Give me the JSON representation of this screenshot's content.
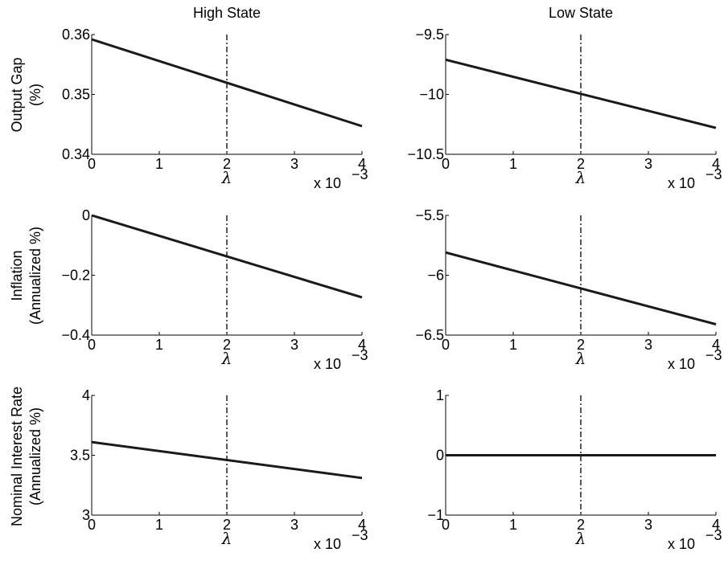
{
  "figure": {
    "column_titles": [
      "High State",
      "Low State"
    ],
    "row_ylabels": [
      [
        "Output Gap",
        "(%)"
      ],
      [
        "Inflation",
        "(Annualized %)"
      ],
      [
        "Nominal Interest Rate",
        "(Annualized %)"
      ]
    ]
  },
  "chart_data": [
    {
      "type": "line",
      "row": 0,
      "col": 0,
      "xlabel": "λ",
      "x_scale_label": "x 10",
      "x_scale_exp": "−3",
      "xlim": [
        0,
        4
      ],
      "xticks": [
        0,
        1,
        2,
        3,
        4
      ],
      "xtick_labels": [
        "0",
        "1",
        "2",
        "3",
        "4"
      ],
      "ylim": [
        0.34,
        0.36
      ],
      "yticks": [
        0.34,
        0.35,
        0.36
      ],
      "ytick_labels": [
        "0.34",
        "0.35",
        "0.36"
      ],
      "series": [
        {
          "x": [
            0,
            4
          ],
          "y": [
            0.3592,
            0.3447
          ]
        }
      ],
      "vline": 2,
      "grid": false
    },
    {
      "type": "line",
      "row": 0,
      "col": 1,
      "xlabel": "λ",
      "x_scale_label": "x 10",
      "x_scale_exp": "−3",
      "xlim": [
        0,
        4
      ],
      "xticks": [
        0,
        1,
        2,
        3,
        4
      ],
      "xtick_labels": [
        "0",
        "1",
        "2",
        "3",
        "4"
      ],
      "ylim": [
        -10.5,
        -9.5
      ],
      "yticks": [
        -10.5,
        -10,
        -9.5
      ],
      "ytick_labels": [
        "−10.5",
        "−10",
        "−9.5"
      ],
      "series": [
        {
          "x": [
            0,
            4
          ],
          "y": [
            -9.71,
            -10.28
          ]
        }
      ],
      "vline": 2,
      "grid": false
    },
    {
      "type": "line",
      "row": 1,
      "col": 0,
      "xlabel": "λ",
      "x_scale_label": "x 10",
      "x_scale_exp": "−3",
      "xlim": [
        0,
        4
      ],
      "xticks": [
        0,
        1,
        2,
        3,
        4
      ],
      "xtick_labels": [
        "0",
        "1",
        "2",
        "3",
        "4"
      ],
      "ylim": [
        -0.4,
        0
      ],
      "yticks": [
        -0.4,
        -0.2,
        0
      ],
      "ytick_labels": [
        "−0.4",
        "−0.2",
        "0"
      ],
      "series": [
        {
          "x": [
            0,
            4
          ],
          "y": [
            0.0,
            -0.274
          ]
        }
      ],
      "vline": 2,
      "grid": false
    },
    {
      "type": "line",
      "row": 1,
      "col": 1,
      "xlabel": "λ",
      "x_scale_label": "x 10",
      "x_scale_exp": "−3",
      "xlim": [
        0,
        4
      ],
      "xticks": [
        0,
        1,
        2,
        3,
        4
      ],
      "xtick_labels": [
        "0",
        "1",
        "2",
        "3",
        "4"
      ],
      "ylim": [
        -6.5,
        -5.5
      ],
      "yticks": [
        -6.5,
        -6,
        -5.5
      ],
      "ytick_labels": [
        "−6.5",
        "−6",
        "−5.5"
      ],
      "series": [
        {
          "x": [
            0,
            4
          ],
          "y": [
            -5.81,
            -6.41
          ]
        }
      ],
      "vline": 2,
      "grid": false
    },
    {
      "type": "line",
      "row": 2,
      "col": 0,
      "xlabel": "λ",
      "x_scale_label": "x 10",
      "x_scale_exp": "−3",
      "xlim": [
        0,
        4
      ],
      "xticks": [
        0,
        1,
        2,
        3,
        4
      ],
      "xtick_labels": [
        "0",
        "1",
        "2",
        "3",
        "4"
      ],
      "ylim": [
        3,
        4
      ],
      "yticks": [
        3,
        3.5,
        4
      ],
      "ytick_labels": [
        "3",
        "3.5",
        "4"
      ],
      "series": [
        {
          "x": [
            0,
            4
          ],
          "y": [
            3.61,
            3.31
          ]
        }
      ],
      "vline": 2,
      "grid": false
    },
    {
      "type": "line",
      "row": 2,
      "col": 1,
      "xlabel": "λ",
      "x_scale_label": "x 10",
      "x_scale_exp": "−3",
      "xlim": [
        0,
        4
      ],
      "xticks": [
        0,
        1,
        2,
        3,
        4
      ],
      "xtick_labels": [
        "0",
        "1",
        "2",
        "3",
        "4"
      ],
      "ylim": [
        -1,
        1
      ],
      "yticks": [
        -1,
        0,
        1
      ],
      "ytick_labels": [
        "−1",
        "0",
        "1"
      ],
      "series": [
        {
          "x": [
            0,
            4
          ],
          "y": [
            0,
            0
          ]
        }
      ],
      "vline": 2,
      "grid": false
    }
  ]
}
